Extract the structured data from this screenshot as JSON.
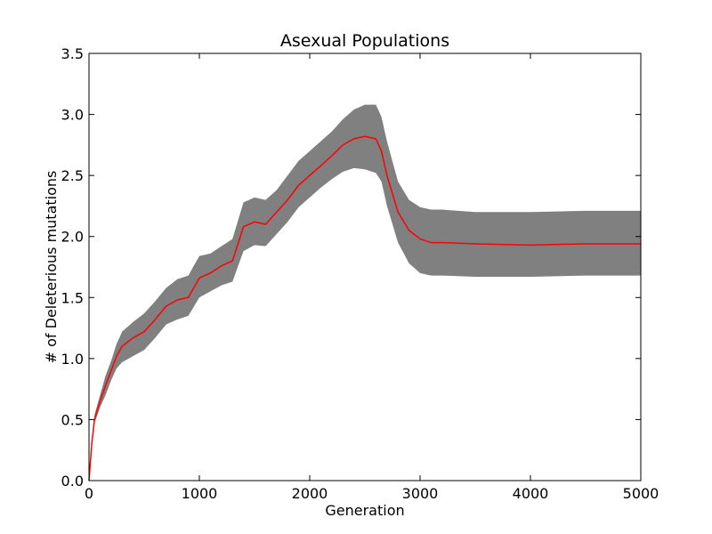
{
  "chart_data": {
    "type": "line",
    "title": "Asexual Populations",
    "xlabel": "Generation",
    "ylabel": "# of Deleterious mutations",
    "xlim": [
      0,
      5000
    ],
    "ylim": [
      0,
      3.5
    ],
    "xticks": [
      0,
      1000,
      2000,
      3000,
      4000,
      5000
    ],
    "yticks": [
      0.0,
      0.5,
      1.0,
      1.5,
      2.0,
      2.5,
      3.0,
      3.5
    ],
    "xtick_labels": [
      "0",
      "1000",
      "2000",
      "3000",
      "4000",
      "5000"
    ],
    "ytick_labels": [
      "0.0",
      "0.5",
      "1.0",
      "1.5",
      "2.0",
      "2.5",
      "3.0",
      "3.5"
    ],
    "grid": false,
    "colors": {
      "mean_line": "#ff0000",
      "band": "#808080"
    },
    "series": [
      {
        "style": "line",
        "x": [
          0,
          25,
          50,
          100,
          150,
          200,
          250,
          300,
          400,
          500,
          600,
          700,
          800,
          900,
          1000,
          1100,
          1200,
          1300,
          1400,
          1500,
          1600,
          1700,
          1800,
          1900,
          2000,
          2100,
          2200,
          2300,
          2400,
          2500,
          2600,
          2650,
          2700,
          2800,
          2900,
          3000,
          3100,
          3200,
          3500,
          4000,
          4500,
          5000
        ],
        "values": [
          0.0,
          0.3,
          0.5,
          0.65,
          0.78,
          0.9,
          1.02,
          1.1,
          1.17,
          1.22,
          1.32,
          1.43,
          1.48,
          1.5,
          1.66,
          1.7,
          1.76,
          1.8,
          2.08,
          2.12,
          2.1,
          2.2,
          2.3,
          2.42,
          2.5,
          2.58,
          2.66,
          2.75,
          2.8,
          2.82,
          2.8,
          2.7,
          2.5,
          2.2,
          2.05,
          1.98,
          1.95,
          1.95,
          1.94,
          1.93,
          1.94,
          1.94
        ]
      },
      {
        "style": "band",
        "x": [
          0,
          25,
          50,
          100,
          150,
          200,
          250,
          300,
          400,
          500,
          600,
          700,
          800,
          900,
          1000,
          1100,
          1200,
          1300,
          1400,
          1500,
          1600,
          1700,
          1800,
          1900,
          2000,
          2100,
          2200,
          2300,
          2400,
          2500,
          2600,
          2650,
          2700,
          2800,
          2900,
          3000,
          3100,
          3200,
          3500,
          4000,
          4500,
          5000
        ],
        "lower": [
          0.0,
          0.28,
          0.47,
          0.6,
          0.7,
          0.82,
          0.92,
          0.97,
          1.02,
          1.07,
          1.17,
          1.28,
          1.32,
          1.35,
          1.5,
          1.55,
          1.6,
          1.63,
          1.88,
          1.93,
          1.92,
          2.02,
          2.12,
          2.24,
          2.32,
          2.4,
          2.47,
          2.53,
          2.56,
          2.55,
          2.52,
          2.45,
          2.25,
          1.95,
          1.78,
          1.7,
          1.68,
          1.68,
          1.67,
          1.67,
          1.68,
          1.68
        ],
        "upper": [
          0.05,
          0.33,
          0.54,
          0.7,
          0.86,
          0.98,
          1.12,
          1.22,
          1.3,
          1.37,
          1.47,
          1.58,
          1.65,
          1.68,
          1.84,
          1.86,
          1.92,
          1.98,
          2.28,
          2.32,
          2.3,
          2.38,
          2.5,
          2.62,
          2.7,
          2.78,
          2.86,
          2.96,
          3.04,
          3.08,
          3.08,
          2.98,
          2.78,
          2.45,
          2.3,
          2.24,
          2.22,
          2.22,
          2.2,
          2.2,
          2.21,
          2.21
        ]
      }
    ]
  }
}
